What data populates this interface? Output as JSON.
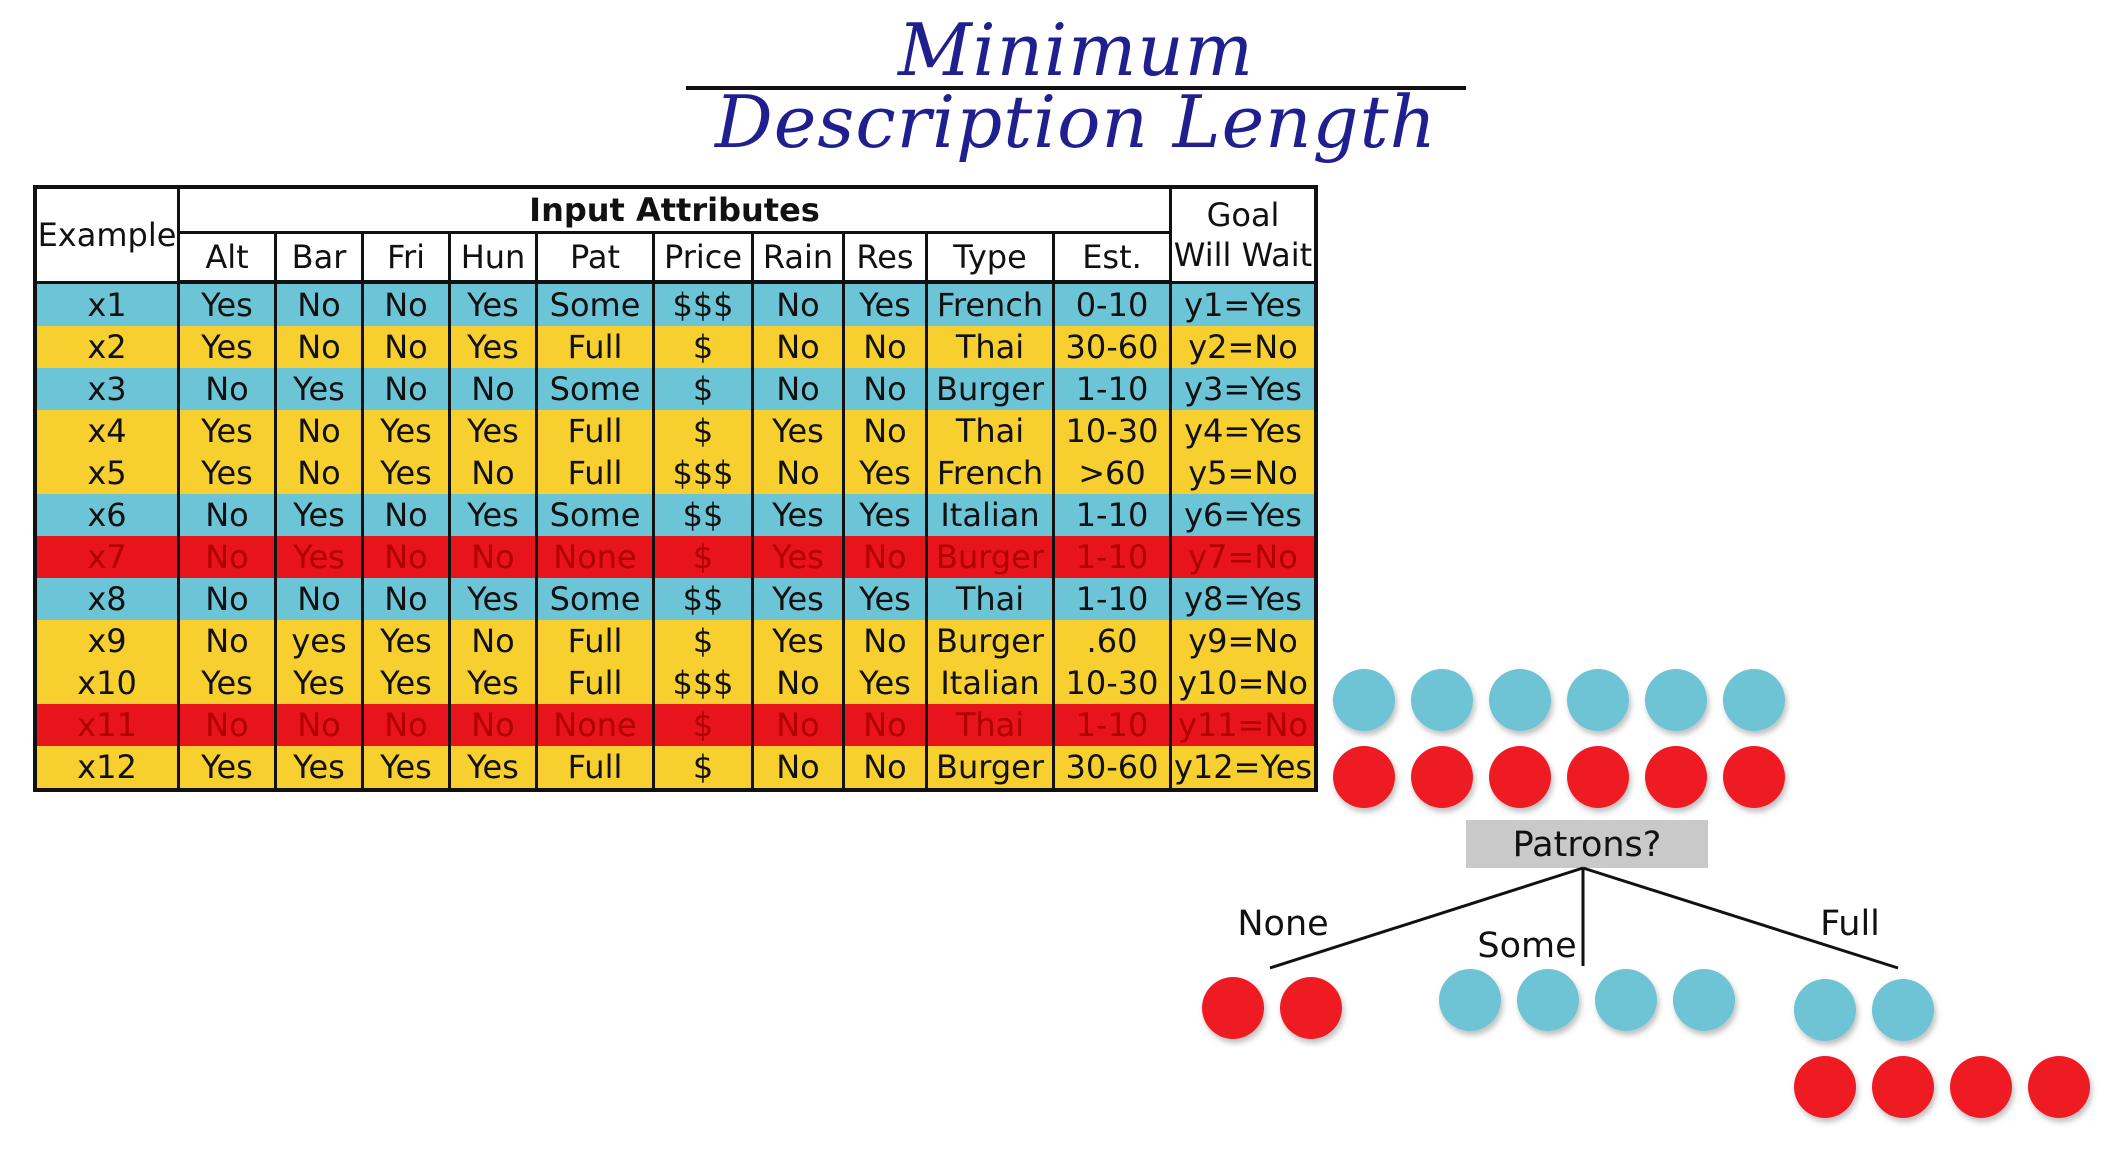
{
  "title": "Minimum Description Length",
  "table": {
    "example_header": "Example",
    "input_header": "Input Attributes",
    "goal_header_line1": "Goal",
    "goal_header_line2": "Will Wait",
    "attributes": [
      "Alt",
      "Bar",
      "Fri",
      "Hun",
      "Pat",
      "Price",
      "Rain",
      "Res",
      "Type",
      "Est."
    ],
    "rows": [
      {
        "color": "blue",
        "cells": [
          "x1",
          "Yes",
          "No",
          "No",
          "Yes",
          "Some",
          "$$$",
          "No",
          "Yes",
          "French",
          "0-10",
          "y1=Yes"
        ]
      },
      {
        "color": "yellow",
        "cells": [
          "x2",
          "Yes",
          "No",
          "No",
          "Yes",
          "Full",
          "$",
          "No",
          "No",
          "Thai",
          "30-60",
          "y2=No"
        ]
      },
      {
        "color": "blue",
        "cells": [
          "x3",
          "No",
          "Yes",
          "No",
          "No",
          "Some",
          "$",
          "No",
          "No",
          "Burger",
          "1-10",
          "y3=Yes"
        ]
      },
      {
        "color": "yellow",
        "cells": [
          "x4",
          "Yes",
          "No",
          "Yes",
          "Yes",
          "Full",
          "$",
          "Yes",
          "No",
          "Thai",
          "10-30",
          "y4=Yes"
        ]
      },
      {
        "color": "yellow",
        "cells": [
          "x5",
          "Yes",
          "No",
          "Yes",
          "No",
          "Full",
          "$$$",
          "No",
          "Yes",
          "French",
          ">60",
          "y5=No"
        ]
      },
      {
        "color": "blue",
        "cells": [
          "x6",
          "No",
          "Yes",
          "No",
          "Yes",
          "Some",
          "$$",
          "Yes",
          "Yes",
          "Italian",
          "1-10",
          "y6=Yes"
        ]
      },
      {
        "color": "red",
        "cells": [
          "x7",
          "No",
          "Yes",
          "No",
          "No",
          "None",
          "$",
          "Yes",
          "No",
          "Burger",
          "1-10",
          "y7=No"
        ]
      },
      {
        "color": "blue",
        "cells": [
          "x8",
          "No",
          "No",
          "No",
          "Yes",
          "Some",
          "$$",
          "Yes",
          "Yes",
          "Thai",
          "1-10",
          "y8=Yes"
        ]
      },
      {
        "color": "yellow",
        "cells": [
          "x9",
          "No",
          "yes",
          "Yes",
          "No",
          "Full",
          "$",
          "Yes",
          "No",
          "Burger",
          ".60",
          "y9=No"
        ]
      },
      {
        "color": "yellow",
        "cells": [
          "x10",
          "Yes",
          "Yes",
          "Yes",
          "Yes",
          "Full",
          "$$$",
          "No",
          "Yes",
          "Italian",
          "10-30",
          "y10=No"
        ]
      },
      {
        "color": "red",
        "cells": [
          "x11",
          "No",
          "No",
          "No",
          "No",
          "None",
          "$",
          "No",
          "No",
          "Thai",
          "1-10",
          "y11=No"
        ]
      },
      {
        "color": "yellow",
        "cells": [
          "x12",
          "Yes",
          "Yes",
          "Yes",
          "Yes",
          "Full",
          "$",
          "No",
          "No",
          "Burger",
          "30-60",
          "y12=Yes"
        ]
      }
    ]
  },
  "tree": {
    "root_label": "Patrons?",
    "root_counts": {
      "positive": 6,
      "negative": 6
    },
    "branches": [
      {
        "label": "None",
        "positive": 0,
        "negative": 2
      },
      {
        "label": "Some",
        "positive": 4,
        "negative": 0
      },
      {
        "label": "Full",
        "positive": 2,
        "negative": 4
      }
    ]
  },
  "colors": {
    "positive": "#6ec3d4",
    "negative": "#ee1c24",
    "row_blue": "#6cc5d6",
    "row_yellow": "#f7cf2e",
    "row_red": "#e8141c"
  }
}
